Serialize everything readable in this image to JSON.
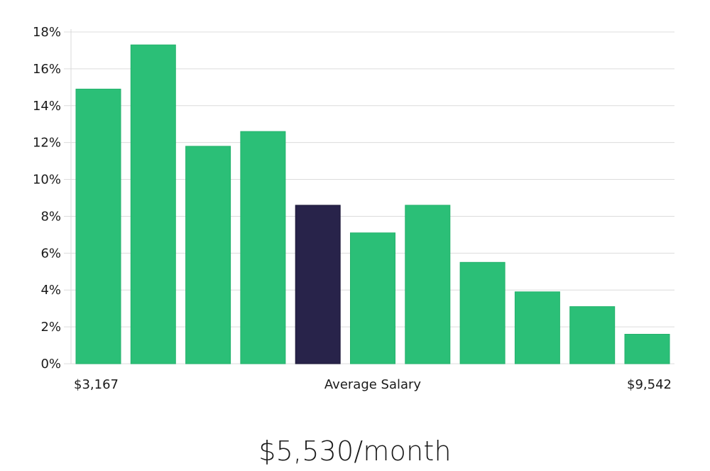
{
  "chart_data": {
    "type": "bar",
    "xlabel": "Average Salary",
    "x_range_labels": {
      "min": "$3,167",
      "max": "$9,542"
    },
    "ylim": [
      0,
      18
    ],
    "y_ticks": [
      0,
      2,
      4,
      6,
      8,
      10,
      12,
      14,
      16,
      18
    ],
    "y_tick_format": "%",
    "grid": true,
    "values": [
      14.9,
      17.3,
      11.8,
      12.6,
      8.6,
      7.1,
      8.6,
      5.5,
      3.9,
      3.1,
      1.6
    ],
    "highlight_index": 4,
    "bar_color": "#2bbf77",
    "highlight_color": "#28234a"
  },
  "summary": {
    "headline": "$5,530/month"
  }
}
